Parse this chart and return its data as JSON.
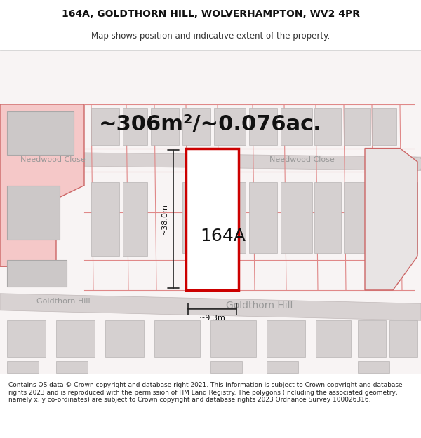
{
  "title_line1": "164A, GOLDTHORN HILL, WOLVERHAMPTON, WV2 4PR",
  "title_line2": "Map shows position and indicative extent of the property.",
  "area_text": "~306m²/~0.076ac.",
  "label_164A": "164A",
  "dim_height": "~38.0m",
  "dim_width": "~9.3m",
  "street_needwood_close": "Needwood Close",
  "street_goldthorn_hill": "Goldthorn Hill",
  "footer_text": "Contains OS data © Crown copyright and database right 2021. This information is subject to Crown copyright and database rights 2023 and is reproduced with the permission of HM Land Registry. The polygons (including the associated geometry, namely x, y co-ordinates) are subject to Crown copyright and database rights 2023 Ordnance Survey 100026316.",
  "bg_color": "#ffffff",
  "map_bg": "#f5f0f0",
  "road_color": "#d8d0d0",
  "road_fill": "#e8e0e0",
  "plot_outline_color": "#cc0000",
  "plot_fill_color": "#ffffff",
  "building_color": "#c8c4c4",
  "building_outline": "#b0a8a8",
  "red_fill_color": "#ffcccc",
  "red_outline": "#cc4444",
  "dim_line_color": "#222222",
  "text_color": "#333333",
  "street_label_color": "#888888",
  "title_fontsize": 10,
  "subtitle_fontsize": 8.5,
  "area_fontsize": 22,
  "label_fontsize": 18,
  "footer_fontsize": 6.5
}
